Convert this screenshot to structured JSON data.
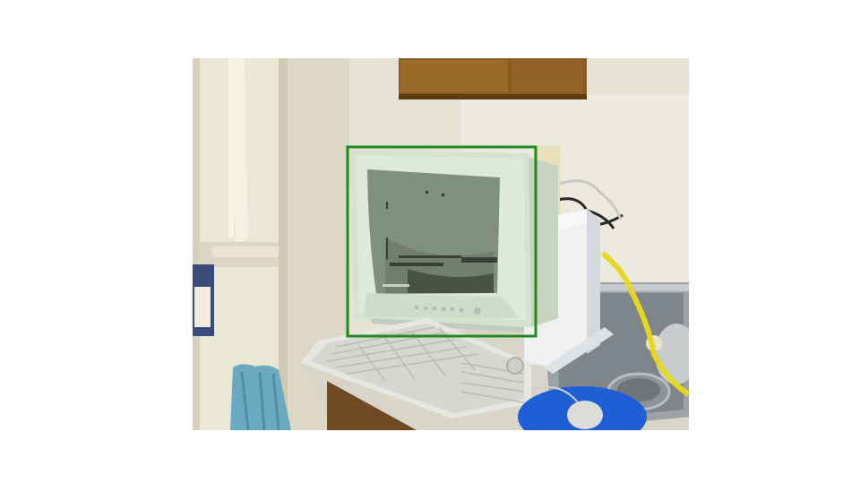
{
  "scene": {
    "subject": "monitor",
    "objects": [
      "refrigerator",
      "cabinet",
      "monitor",
      "computer-tower",
      "keyboard",
      "mouse",
      "mousepad",
      "sink",
      "saucepan",
      "towel",
      "cables"
    ]
  },
  "annotation": {
    "box_label": "monitor",
    "box_color": "#1f8a1f"
  },
  "colors": {
    "wall": "#e8e4d6",
    "fridge": "#ece8d6",
    "cabinet": "#8b5a1f",
    "monitor_bezel": "#d8e4d2",
    "screen": "#7f8f80",
    "keyboard": "#e4e4e0",
    "mousepad": "#1f5fd6",
    "sink": "#9aa0a4",
    "towel": "#6ab0c4",
    "cable": "#e6d820"
  }
}
